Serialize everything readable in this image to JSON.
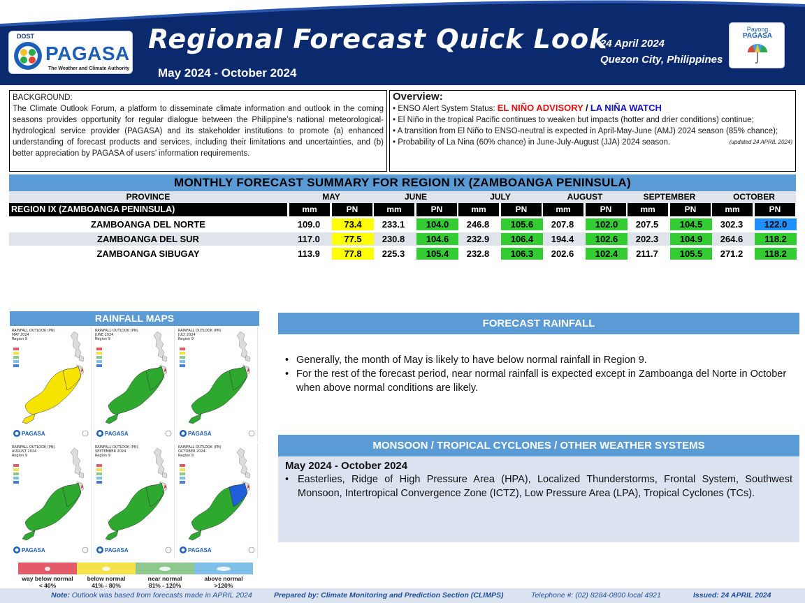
{
  "header": {
    "logo_agency": "DOST",
    "logo_name": "PAGASA",
    "logo_tagline": "The Weather and Climate Authority",
    "title": "Regional Forecast Quick Look",
    "period": "May 2024 - October 2024",
    "date": "24 April 2024",
    "place": "Quezon City, Philippines",
    "badge_line1": "Payong",
    "badge_line2": "PAGASA",
    "colors": {
      "navy": "#0b2a6e",
      "accent_blue": "#5b9bd5"
    }
  },
  "background": {
    "heading": "BACKGROUND:",
    "text": "The Climate Outlook Forum, a platform to disseminate climate information and outlook in the coming seasons provides opportunity for regular dialogue between the Philippine’s national meteorological-hydrological service provider (PAGASA) and its stakeholder institutions to promote (a) enhanced understanding of forecast products and services, including their limitations and uncertainties, and (b) better appreciation by PAGASA of users’ information requirements."
  },
  "overview": {
    "heading": "Overview:",
    "enso_label": "ENSO Alert System Status:",
    "enso_advisory": "EL NIÑO ADVISORY",
    "enso_sep": "/",
    "enso_watch": "LA NIÑA WATCH",
    "bullet2": "El Niño in the tropical Pacific continues to weaken but impacts (hotter and drier conditions) continue;",
    "bullet3": "A transition from El Niño to ENSO-neutral is expected in April-May-June (AMJ) 2024 season (85% chance);",
    "bullet4": "Probability of La Nina (60% chance) in June-July-August (JJA) 2024 season.",
    "updated": "(updated 24 APRIL 2024)",
    "colors": {
      "advisory": "#e01010",
      "watch": "#1010c8"
    }
  },
  "summary": {
    "title": "MONTHLY FORECAST SUMMARY FOR REGION IX (ZAMBOANGA PENINSULA)",
    "province_header": "PROVINCE",
    "region_label": "REGION IX (ZAMBOANGA PENINSULA)",
    "months": [
      "MAY",
      "JUNE",
      "JULY",
      "AUGUST",
      "SEPTEMBER",
      "OCTOBER"
    ],
    "unit_mm": "mm",
    "unit_pn": "PN",
    "rows": [
      {
        "province": "ZAMBOANGA DEL NORTE",
        "values": [
          {
            "mm": "109.0",
            "pn": "73.4"
          },
          {
            "mm": "233.1",
            "pn": "104.0"
          },
          {
            "mm": "246.8",
            "pn": "105.6"
          },
          {
            "mm": "207.8",
            "pn": "102.0"
          },
          {
            "mm": "207.5",
            "pn": "104.5"
          },
          {
            "mm": "302.3",
            "pn": "122.0"
          }
        ]
      },
      {
        "province": "ZAMBOANGA DEL SUR",
        "values": [
          {
            "mm": "117.0",
            "pn": "77.5"
          },
          {
            "mm": "230.8",
            "pn": "104.6"
          },
          {
            "mm": "232.9",
            "pn": "106.4"
          },
          {
            "mm": "194.4",
            "pn": "102.6"
          },
          {
            "mm": "202.3",
            "pn": "104.9"
          },
          {
            "mm": "264.6",
            "pn": "118.2"
          }
        ]
      },
      {
        "province": "ZAMBOANGA SIBUGAY",
        "values": [
          {
            "mm": "113.9",
            "pn": "77.8"
          },
          {
            "mm": "225.3",
            "pn": "105.4"
          },
          {
            "mm": "232.8",
            "pn": "106.3"
          },
          {
            "mm": "202.6",
            "pn": "102.4"
          },
          {
            "mm": "211.7",
            "pn": "105.5"
          },
          {
            "mm": "271.2",
            "pn": "118.2"
          }
        ]
      }
    ],
    "category_colors": {
      "below": "#ffff00",
      "near": "#33cc33",
      "above": "#1e90ff"
    }
  },
  "maps": {
    "title": "RAINFALL MAPS",
    "panels": [
      {
        "title": "RAINFALL OUTLOOK (PN)",
        "month": "MAY 2024",
        "region": "Region 9",
        "category": "below"
      },
      {
        "title": "RAINFALL OUTLOOK (PN)",
        "month": "JUNE 2024",
        "region": "Region 9",
        "category": "near"
      },
      {
        "title": "RAINFALL OUTLOOK (PN)",
        "month": "JULY 2024",
        "region": "Region 9",
        "category": "near"
      },
      {
        "title": "RAINFALL OUTLOOK (PN)",
        "month": "AUGUST 2024",
        "region": "Region 9",
        "category": "near"
      },
      {
        "title": "RAINFALL OUTLOOK (PN)",
        "month": "SEPTEMBER 2024",
        "region": "Region 9",
        "category": "near"
      },
      {
        "title": "RAINFALL OUTLOOK (PN)",
        "month": "OCTOBER 2024",
        "region": "Region 9",
        "category": "mixed-above"
      }
    ],
    "legend": [
      {
        "label": "way below normal",
        "range": "< 40%",
        "color": "#e25b6a"
      },
      {
        "label": "below normal",
        "range": "41% - 80%",
        "color": "#f3e24a"
      },
      {
        "label": "near normal",
        "range": "81% - 120%",
        "color": "#8fc88f"
      },
      {
        "label": "above normal",
        "range": ">120%",
        "color": "#7fbfe8"
      }
    ]
  },
  "forecast_rainfall": {
    "title": "FORECAST RAINFALL",
    "bullets": [
      "Generally, the month of May is likely to have below normal rainfall in Region 9.",
      "For the rest of the forecast period, near normal rainfall is expected except in  Zamboanga del Norte in October when above normal conditions are likely."
    ]
  },
  "monsoon": {
    "title": "MONSOON  / TROPICAL CYCLONES / OTHER WEATHER SYSTEMS",
    "period": "May 2024 - October 2024",
    "bullet": "Easterlies, Ridge of High Pressure Area (HPA), Localized Thunderstorms, Frontal System, Southwest Monsoon, Intertropical Convergence Zone (ICTZ), Low Pressure Area (LPA), Tropical Cyclones (TCs)."
  },
  "footer": {
    "note_label": "Note:",
    "note": "Outlook was based from forecasts made in APRIL 2024",
    "prepared": "Prepared by: Climate Monitoring and Prediction Section (CLIMPS)",
    "telephone": "Telephone #: (02) 8284-0800 local 4921",
    "issued": "Issued: 24 APRIL 2024"
  }
}
